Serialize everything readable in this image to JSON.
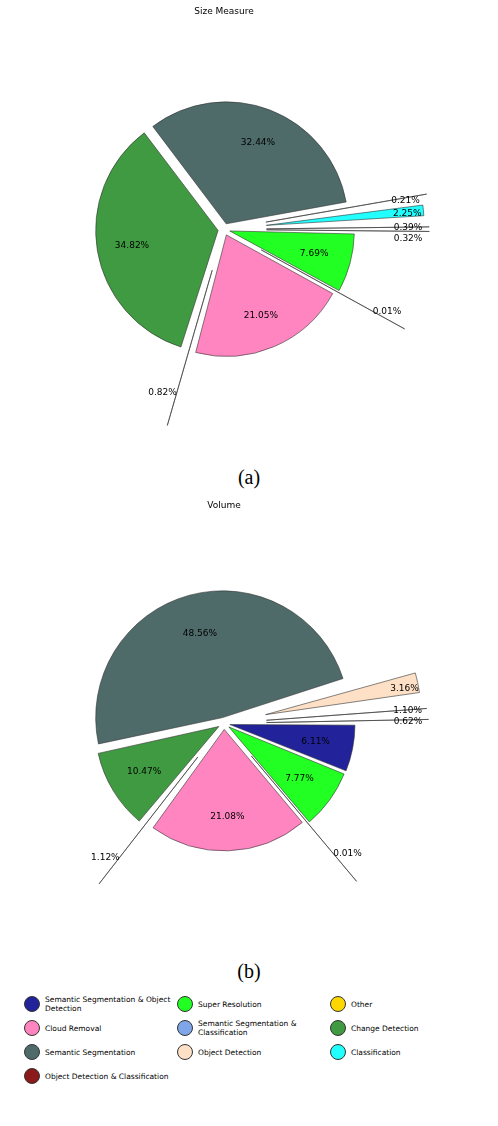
{
  "chart_data": [
    {
      "type": "pie",
      "title": "Size Measure",
      "caption": "(a)",
      "categories": [
        "Semantic Segmentation & Object Detection",
        "Super Resolution",
        "Other",
        "Cloud Removal",
        "Semantic Segmentation & Classification",
        "Change Detection",
        "Semantic Segmentation",
        "Object Detection",
        "Classification",
        "Object Detection & Classification"
      ],
      "values": [
        0.32,
        7.69,
        0.01,
        21.05,
        0.82,
        34.82,
        32.44,
        0.21,
        2.25,
        0.39
      ],
      "value_labels": [
        "0.32%",
        "7.69%",
        "0.01%",
        "21.05%",
        "0.82%",
        "34.82%",
        "32.44%",
        "0.21%",
        "2.25%",
        "0.39%"
      ],
      "colors": [
        "#22229a",
        "#22ff22",
        "#ffd700",
        "#ff85c0",
        "#7ea6e8",
        "#3f9a41",
        "#4e6b6a",
        "#fde0c5",
        "#22ffff",
        "#8b1a1a"
      ],
      "data_labels": true,
      "legend": "bottom"
    },
    {
      "type": "pie",
      "title": "Volume",
      "caption": "(b)",
      "categories": [
        "Semantic Segmentation & Object Detection",
        "Super Resolution",
        "Other",
        "Cloud Removal",
        "Semantic Segmentation & Classification",
        "Change Detection",
        "Semantic Segmentation",
        "Object Detection",
        "Classification",
        "Object Detection & Classification"
      ],
      "values": [
        6.11,
        7.77,
        0.01,
        21.08,
        1.12,
        10.47,
        48.56,
        3.16,
        1.1,
        0.62
      ],
      "value_labels": [
        "6.11%",
        "7.77%",
        "0.01%",
        "21.08%",
        "1.12%",
        "10.47%",
        "48.56%",
        "3.16%",
        "1.10%",
        "0.62%"
      ],
      "colors": [
        "#22229a",
        "#22ff22",
        "#ffd700",
        "#ff85c0",
        "#7ea6e8",
        "#3f9a41",
        "#4e6b6a",
        "#fde0c5",
        "#22ffff",
        "#8b1a1a"
      ],
      "data_labels": true,
      "legend": "bottom"
    }
  ]
}
